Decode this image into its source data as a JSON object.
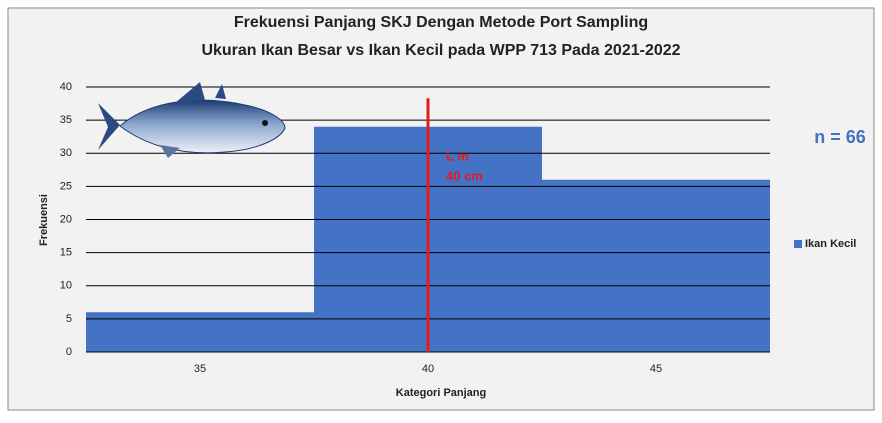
{
  "chart_data": {
    "type": "bar",
    "title": [
      "Frekuensi Panjang SKJ Dengan Metode Port Sampling",
      "Ukuran Ikan Besar vs Ikan Kecil pada WPP 713 Pada 2021-2022"
    ],
    "x_label": "Kategori Panjang",
    "y_label": "Frekuensi",
    "categories": [
      "35",
      "40",
      "45"
    ],
    "series": [
      {
        "name": "Ikan Kecil",
        "color": "#4472c4",
        "values": [
          6,
          34,
          26
        ]
      }
    ],
    "ylim": [
      0,
      40
    ],
    "yticks": [
      0,
      5,
      10,
      15,
      20,
      25,
      30,
      35,
      40
    ],
    "grid": true,
    "legend": "right",
    "reference_line": {
      "at": 40,
      "top": 38.3,
      "color": "#e31b1b",
      "labels": [
        "L m",
        "40 cm"
      ]
    },
    "annotation": "n = 66"
  }
}
